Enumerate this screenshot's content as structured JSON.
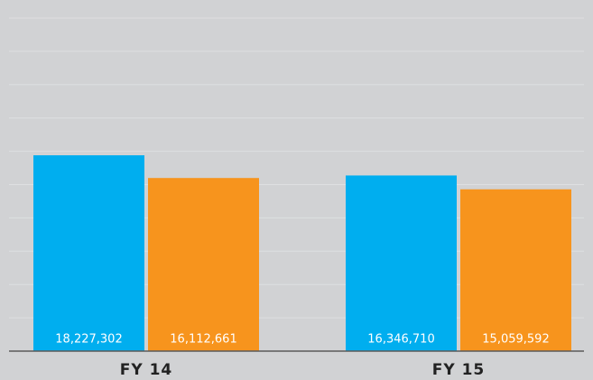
{
  "chart_data": {
    "type": "bar",
    "categories": [
      "FY 14",
      "FY 15"
    ],
    "series": [
      {
        "color": "#00aeef",
        "values": [
          18227302,
          16346710
        ],
        "value_labels": [
          "18,227,302",
          "16,346,710"
        ]
      },
      {
        "color": "#f7941d",
        "values": [
          16112661,
          15059592
        ],
        "value_labels": [
          "16,112,661",
          "15,059,592"
        ]
      }
    ],
    "ylim": [
      0,
      31000000
    ],
    "yticks": [
      0,
      3100000,
      6200000,
      9300000,
      12400000,
      15500000,
      18600000,
      21700000,
      24800000,
      27900000,
      31000000
    ],
    "grid": true
  }
}
